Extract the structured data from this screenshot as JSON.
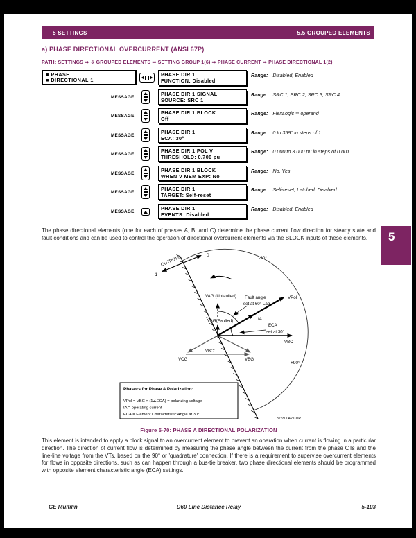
{
  "header": {
    "left": "5 SETTINGS",
    "right": "5.5 GROUPED ELEMENTS"
  },
  "section": {
    "heading": "a) PHASE DIRECTIONAL OVERCURRENT (ANSI 67P)",
    "path": "PATH: SETTINGS ⇒ ⇩ GROUPED ELEMENTS ⇒ SETTING GROUP 1(6) ⇒ PHASE CURRENT ⇒ PHASE DIRECTIONAL 1(2)"
  },
  "settings_table": {
    "menu_line1": "■ PHASE",
    "menu_line2": "■ DIRECTIONAL 1",
    "message_label": "MESSAGE",
    "range_label": "Range:",
    "rows": [
      {
        "line1": "PHASE DIR 1",
        "line2": "FUNCTION: Disabled",
        "range": "Disabled, Enabled"
      },
      {
        "line1": "PHASE DIR 1 SIGNAL",
        "line2": "SOURCE: SRC 1",
        "range": "SRC 1, SRC 2, SRC 3, SRC 4"
      },
      {
        "line1": "PHASE DIR 1 BLOCK:",
        "line2": "Off",
        "range": "FlexLogic™ operand"
      },
      {
        "line1": "PHASE DIR 1",
        "line2": "ECA: 30°",
        "range": "0 to 359° in steps of 1"
      },
      {
        "line1": "PHASE DIR 1 POL V",
        "line2": "THRESHOLD: 0.700 pu",
        "range": "0.000 to 3.000 pu in steps of 0.001"
      },
      {
        "line1": "PHASE DIR 1 BLOCK",
        "line2": "WHEN V MEM EXP: No",
        "range": "No, Yes"
      },
      {
        "line1": "PHASE DIR 1",
        "line2": "TARGET: Self-reset",
        "range": "Self-reset, Latched, Disabled"
      },
      {
        "line1": "PHASE DIR 1",
        "line2": "EVENTS: Disabled",
        "range": "Disabled, Enabled"
      }
    ]
  },
  "paragraphs": {
    "intro": "The phase directional elements (one for each of phases A, B, and C) determine the phase current flow direction for steady state and fault conditions and can be used to control the operation of directional overcurrent elements via the BLOCK inputs of these elements.",
    "description": "This element is intended to apply a block signal to an overcurrent element to prevent an operation when current is flowing in a particular direction. The direction of current flow is determined by measuring the phase angle between the current from the phase CTs and the line-line voltage from the VTs, based on the 90° or 'quadrature' connection. If there is a requirement to supervise overcurrent elements for flows in opposite directions, such as can happen through a bus-tie breaker, two phase directional elements should be programmed with opposite element characteristic angle (ECA) settings."
  },
  "figure": {
    "caption": "Figure 5-70: PHASE A DIRECTIONAL POLARIZATION",
    "drawing_number": "827800A2.CDR",
    "labels": {
      "outputs": "OUTPUTS",
      "out0": "0",
      "out1": "1",
      "minus90": "-90°",
      "plus90": "+90°",
      "vag_unfaulted": "VAG (Unfaulted)",
      "vag_faulted": "VAG(Faulted)",
      "fault_angle_1": "Fault angle",
      "fault_angle_2": "set at 60° Lag",
      "ia": "IA",
      "vpol": "VPol",
      "eca_1": "ECA",
      "eca_2": "set at 30°",
      "vbc": "VBC",
      "vcg": "VCG",
      "vbg": "VBG",
      "vbc_prime": "VBC'"
    },
    "legend": {
      "title": "Phasors for Phase A Polarization:",
      "line1": "VPol = VBC × (1∠ECA) = polarizing voltage",
      "line2": "IA = operating current",
      "line3": "ECA = Element Characteristic Angle at 30°"
    }
  },
  "chapter_tab": "5",
  "footer": {
    "left": "GE Multilin",
    "center": "D60 Line Distance Relay",
    "right": "5-103"
  },
  "colors": {
    "brand_purple": "#7D2462"
  }
}
